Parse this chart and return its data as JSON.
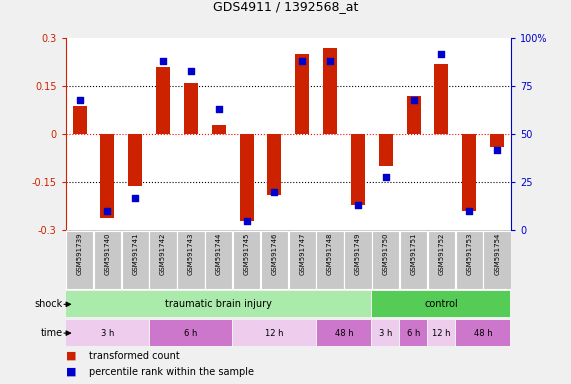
{
  "title": "GDS4911 / 1392568_at",
  "samples": [
    "GSM591739",
    "GSM591740",
    "GSM591741",
    "GSM591742",
    "GSM591743",
    "GSM591744",
    "GSM591745",
    "GSM591746",
    "GSM591747",
    "GSM591748",
    "GSM591749",
    "GSM591750",
    "GSM591751",
    "GSM591752",
    "GSM591753",
    "GSM591754"
  ],
  "red_values": [
    0.09,
    -0.26,
    -0.16,
    0.21,
    0.16,
    0.03,
    -0.27,
    -0.19,
    0.25,
    0.27,
    -0.22,
    -0.1,
    0.12,
    0.22,
    -0.24,
    -0.04
  ],
  "blue_values": [
    68,
    10,
    17,
    88,
    83,
    63,
    5,
    20,
    88,
    88,
    13,
    28,
    68,
    92,
    10,
    42
  ],
  "ylim": [
    -0.3,
    0.3
  ],
  "y2lim": [
    0,
    100
  ],
  "yticks": [
    -0.3,
    -0.15,
    0,
    0.15,
    0.3
  ],
  "y2ticks": [
    0,
    25,
    50,
    75,
    100
  ],
  "ytick_labels": [
    "-0.3",
    "-0.15",
    "0",
    "0.15",
    "0.3"
  ],
  "y2tick_labels": [
    "0",
    "25",
    "50",
    "75",
    "100%"
  ],
  "bar_color": "#cc2200",
  "dot_color": "#0000cc",
  "fig_bg": "#f0f0f0",
  "plot_bg": "#ffffff",
  "shock_label": "shock",
  "time_label": "time",
  "shock_groups": [
    {
      "label": "traumatic brain injury",
      "start": 0,
      "end": 11,
      "color": "#aaeaaa"
    },
    {
      "label": "control",
      "start": 11,
      "end": 16,
      "color": "#55cc55"
    }
  ],
  "time_groups": [
    {
      "label": "3 h",
      "start": 0,
      "end": 3,
      "color": "#eeccee"
    },
    {
      "label": "6 h",
      "start": 3,
      "end": 6,
      "color": "#cc77cc"
    },
    {
      "label": "12 h",
      "start": 6,
      "end": 9,
      "color": "#eeccee"
    },
    {
      "label": "48 h",
      "start": 9,
      "end": 11,
      "color": "#cc77cc"
    },
    {
      "label": "3 h",
      "start": 11,
      "end": 12,
      "color": "#eeccee"
    },
    {
      "label": "6 h",
      "start": 12,
      "end": 13,
      "color": "#cc77cc"
    },
    {
      "label": "12 h",
      "start": 13,
      "end": 14,
      "color": "#eeccee"
    },
    {
      "label": "48 h",
      "start": 14,
      "end": 16,
      "color": "#cc77cc"
    }
  ],
  "legend_items": [
    {
      "label": "transformed count",
      "color": "#cc2200"
    },
    {
      "label": "percentile rank within the sample",
      "color": "#0000cc"
    }
  ]
}
